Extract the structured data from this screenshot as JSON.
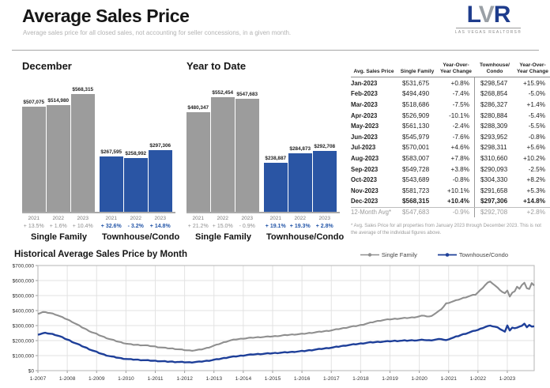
{
  "header": {
    "title": "Average Sales Price",
    "subtitle": "Average sales price for all closed sales, not accounting for seller concessions, in a given month.",
    "logo": {
      "l": "L",
      "v": "V",
      "r": "R",
      "tagline": "LAS VEGAS REALTORS®"
    }
  },
  "colors": {
    "single_family_bar": "#9c9c9c",
    "townhouse_bar": "#2a55a4",
    "single_family_line": "#8f8f8f",
    "townhouse_line": "#1e3f99",
    "pct_gray": "#8f8f8f",
    "pct_blue": "#2456a8"
  },
  "table": {
    "headers": [
      "Avg. Sales Price",
      "Single Family",
      "Year-Over-Year Change",
      "Townhouse/ Condo",
      "Year-Over-Year Change"
    ],
    "rows": [
      {
        "month": "Jan-2023",
        "sf": "$531,675",
        "sf_chg": "+0.8%",
        "tc": "$298,547",
        "tc_chg": "+15.9%",
        "style": ""
      },
      {
        "month": "Feb-2023",
        "sf": "$494,490",
        "sf_chg": "-7.4%",
        "tc": "$268,854",
        "tc_chg": "-5.0%",
        "style": ""
      },
      {
        "month": "Mar-2023",
        "sf": "$518,686",
        "sf_chg": "-7.5%",
        "tc": "$286,327",
        "tc_chg": "+1.4%",
        "style": ""
      },
      {
        "month": "Apr-2023",
        "sf": "$526,909",
        "sf_chg": "-10.1%",
        "tc": "$280,884",
        "tc_chg": "-5.4%",
        "style": ""
      },
      {
        "month": "May-2023",
        "sf": "$561,130",
        "sf_chg": "-2.4%",
        "tc": "$288,309",
        "tc_chg": "-5.5%",
        "style": ""
      },
      {
        "month": "Jun-2023",
        "sf": "$545,979",
        "sf_chg": "-7.6%",
        "tc": "$293,952",
        "tc_chg": "-0.8%",
        "style": ""
      },
      {
        "month": "Jul-2023",
        "sf": "$570,001",
        "sf_chg": "+4.6%",
        "tc": "$298,311",
        "tc_chg": "+5.6%",
        "style": ""
      },
      {
        "month": "Aug-2023",
        "sf": "$583,007",
        "sf_chg": "+7.8%",
        "tc": "$310,660",
        "tc_chg": "+10.2%",
        "style": ""
      },
      {
        "month": "Sep-2023",
        "sf": "$549,728",
        "sf_chg": "+3.8%",
        "tc": "$290,093",
        "tc_chg": "-2.5%",
        "style": ""
      },
      {
        "month": "Oct-2023",
        "sf": "$543,689",
        "sf_chg": "-0.8%",
        "tc": "$304,330",
        "tc_chg": "+8.2%",
        "style": ""
      },
      {
        "month": "Nov-2023",
        "sf": "$581,723",
        "sf_chg": "+10.1%",
        "tc": "$291,658",
        "tc_chg": "+5.3%",
        "style": ""
      },
      {
        "month": "Dec-2023",
        "sf": "$568,315",
        "sf_chg": "+10.4%",
        "tc": "$297,306",
        "tc_chg": "+14.8%",
        "style": "bold"
      },
      {
        "month": "12-Month Avg*",
        "sf": "$547,683",
        "sf_chg": "-0.9%",
        "tc": "$292,708",
        "tc_chg": "+2.8%",
        "style": "avg"
      }
    ],
    "footnote": "* Avg. Sales Price for all properties from January 2023 through December 2023. This is not the average of the individual figures above."
  },
  "chart_data": [
    {
      "type": "bar",
      "title": "December",
      "ylim": [
        0,
        600000
      ],
      "groups": [
        {
          "label": "Single Family",
          "color": "#9c9c9c",
          "pct_color": "#8f8f8f",
          "pct_bold": false,
          "years": [
            "2021",
            "2022",
            "2023"
          ],
          "values": [
            507075,
            514980,
            568315
          ],
          "value_labels": [
            "$507,075",
            "$514,980",
            "$568,315"
          ],
          "changes": [
            "+ 13.5%",
            "+ 1.6%",
            "+ 10.4%"
          ]
        },
        {
          "label": "Townhouse/Condo",
          "color": "#2a55a4",
          "pct_color": "#2456a8",
          "pct_bold": true,
          "years": [
            "2021",
            "2022",
            "2023"
          ],
          "values": [
            267595,
            258992,
            297306
          ],
          "value_labels": [
            "$267,595",
            "$258,992",
            "$297,306"
          ],
          "changes": [
            "+ 32.6%",
            "- 3.2%",
            "+ 14.8%"
          ]
        }
      ]
    },
    {
      "type": "bar",
      "title": "Year to Date",
      "ylim": [
        0,
        600000
      ],
      "groups": [
        {
          "label": "Single Family",
          "color": "#9c9c9c",
          "pct_color": "#8f8f8f",
          "pct_bold": false,
          "years": [
            "2021",
            "2022",
            "2023"
          ],
          "values": [
            480347,
            552454,
            547683
          ],
          "value_labels": [
            "$480,347",
            "$552,454",
            "$547,683"
          ],
          "changes": [
            "+ 21.2%",
            "+ 15.0%",
            "- 0.9%"
          ]
        },
        {
          "label": "Townhouse/Condo",
          "color": "#2a55a4",
          "pct_color": "#2456a8",
          "pct_bold": true,
          "years": [
            "2021",
            "2022",
            "2023"
          ],
          "values": [
            238887,
            284873,
            292708
          ],
          "value_labels": [
            "$238,887",
            "$284,873",
            "$292,708"
          ],
          "changes": [
            "+ 19.1%",
            "+ 19.3%",
            "+ 2.8%"
          ]
        }
      ]
    },
    {
      "type": "line",
      "title": "Historical Average Sales Price by Month",
      "ylim": [
        0,
        700000
      ],
      "grid": true,
      "legend_position": "top-right",
      "y_tick_labels": [
        "$0",
        "$100,000",
        "$200,000",
        "$300,000",
        "$400,000",
        "$500,000",
        "$600,000",
        "$700,000"
      ],
      "x_tick_labels": [
        "1-2007",
        "1-2008",
        "1-2009",
        "1-2010",
        "1-2011",
        "1-2012",
        "1-2013",
        "1-2014",
        "1-2015",
        "1-2016",
        "1-2017",
        "1-2018",
        "1-2019",
        "1-2020",
        "1-2021",
        "1-2022",
        "1-2023"
      ],
      "x_months_per_point": 1,
      "series": [
        {
          "name": "Single Family",
          "color": "#8f8f8f",
          "values": [
            380000,
            384000,
            390000,
            388000,
            386000,
            383000,
            379000,
            375000,
            369000,
            362000,
            355000,
            348000,
            341000,
            333000,
            325000,
            316000,
            307000,
            298000,
            289000,
            281000,
            272000,
            264000,
            256000,
            250000,
            244000,
            237000,
            230000,
            224000,
            218000,
            212000,
            207000,
            202000,
            197000,
            192000,
            188000,
            184000,
            180000,
            177000,
            175000,
            173000,
            172000,
            171000,
            170000,
            169000,
            168000,
            166000,
            164000,
            162000,
            160000,
            157000,
            155000,
            153000,
            151000,
            150000,
            148000,
            147000,
            145000,
            143000,
            141000,
            139000,
            137000,
            135000,
            134000,
            134000,
            135000,
            137000,
            139000,
            142000,
            146000,
            150000,
            155000,
            160000,
            166000,
            171000,
            177000,
            182000,
            188000,
            193000,
            198000,
            202000,
            205000,
            208000,
            210000,
            212000,
            214000,
            215000,
            217000,
            218000,
            220000,
            221000,
            222000,
            223000,
            224000,
            225000,
            226000,
            227000,
            228000,
            229000,
            231000,
            232000,
            234000,
            236000,
            237000,
            239000,
            240000,
            241000,
            242000,
            243000,
            244000,
            246000,
            248000,
            250000,
            252000,
            254000,
            256000,
            258000,
            260000,
            262000,
            264000,
            266000,
            268000,
            271000,
            274000,
            277000,
            280000,
            283000,
            286000,
            289000,
            292000,
            295000,
            297000,
            300000,
            303000,
            307000,
            311000,
            315000,
            319000,
            323000,
            327000,
            330000,
            333000,
            336000,
            338000,
            340000,
            342000,
            343000,
            345000,
            346000,
            347000,
            348000,
            350000,
            351000,
            352000,
            354000,
            356000,
            358000,
            361000,
            364000,
            367000,
            361000,
            359000,
            366000,
            375000,
            385000,
            396000,
            410000,
            427000,
            447000,
            452000,
            457000,
            462000,
            467000,
            473000,
            478000,
            484000,
            489000,
            494000,
            499000,
            503000,
            507075,
            521000,
            536000,
            553000,
            571000,
            586000,
            591000,
            581000,
            567000,
            552000,
            538000,
            524000,
            514980,
            531675,
            494490,
            518686,
            526909,
            561130,
            545979,
            570001,
            583007,
            549728,
            543689,
            581723,
            568315
          ]
        },
        {
          "name": "Townhouse/Condo",
          "color": "#1e3f99",
          "values": [
            241000,
            244000,
            248000,
            250000,
            249000,
            246000,
            243000,
            239000,
            234000,
            228000,
            221000,
            214000,
            207000,
            200000,
            192000,
            185000,
            178000,
            171000,
            164000,
            157000,
            150000,
            143000,
            136000,
            130000,
            124000,
            118000,
            112000,
            107000,
            102000,
            98000,
            94000,
            91000,
            88000,
            85000,
            82000,
            80000,
            78000,
            76000,
            75000,
            74000,
            73000,
            72000,
            71000,
            70000,
            69000,
            68000,
            67000,
            66000,
            65000,
            64000,
            63000,
            62000,
            61000,
            60000,
            60000,
            59000,
            58000,
            58000,
            57000,
            57000,
            56000,
            56000,
            55000,
            56000,
            57000,
            58000,
            59000,
            61000,
            63000,
            65000,
            67000,
            69000,
            72000,
            74000,
            77000,
            80000,
            83000,
            86000,
            89000,
            91000,
            93000,
            95000,
            97000,
            99000,
            101000,
            103000,
            105000,
            106000,
            108000,
            109000,
            110000,
            111000,
            112000,
            113000,
            114000,
            115000,
            116000,
            117000,
            118000,
            119000,
            120000,
            121000,
            122000,
            123000,
            124000,
            126000,
            127000,
            128000,
            130000,
            131000,
            133000,
            135000,
            137000,
            139000,
            141000,
            143000,
            145000,
            147000,
            149000,
            151000,
            153000,
            155000,
            158000,
            160000,
            163000,
            165000,
            168000,
            170000,
            172000,
            174000,
            176000,
            178000,
            180000,
            182000,
            184000,
            186000,
            188000,
            189000,
            190000,
            191000,
            192000,
            193000,
            194000,
            195000,
            196000,
            197000,
            198000,
            198000,
            199000,
            199000,
            200000,
            200000,
            201000,
            201000,
            202000,
            202000,
            203000,
            204000,
            205000,
            202000,
            201000,
            203000,
            205000,
            207000,
            209000,
            211000,
            206000,
            201800,
            210000,
            215000,
            220000,
            226000,
            231000,
            237000,
            242000,
            247000,
            252000,
            257000,
            262000,
            267595,
            271000,
            278000,
            285000,
            291000,
            296000,
            298000,
            296000,
            292000,
            287000,
            279000,
            269000,
            258992,
            298547,
            268854,
            286327,
            280884,
            288309,
            293952,
            298311,
            310660,
            290093,
            304330,
            291658,
            297306
          ]
        }
      ]
    }
  ]
}
